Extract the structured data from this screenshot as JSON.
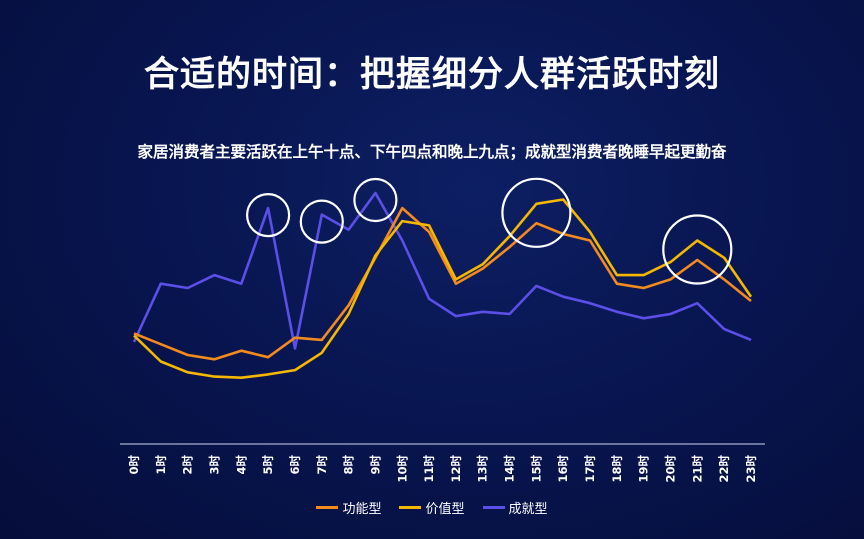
{
  "header": {
    "title": "合适的时间：把握细分人群活跃时刻",
    "subtitle": "家居消费者主要活跃在上午十点、下午四点和晚上九点；成就型消费者晚睡早起更勤奋"
  },
  "chart_data": {
    "type": "line",
    "title": "合适的时间：把握细分人群活跃时刻",
    "xlabel": "",
    "ylabel": "",
    "ylim": [
      0,
      100
    ],
    "grid": false,
    "legend_position": "bottom",
    "categories": [
      "0时",
      "1时",
      "2时",
      "3时",
      "4时",
      "5时",
      "6时",
      "7时",
      "8时",
      "9时",
      "10时",
      "11时",
      "12时",
      "13时",
      "14时",
      "15时",
      "16时",
      "17时",
      "18时",
      "19时",
      "20时",
      "21时",
      "22时",
      "23时"
    ],
    "series": [
      {
        "name": "功能型",
        "color": "#f28a1e",
        "values": [
          35,
          30,
          25,
          23,
          27,
          24,
          33,
          32,
          48,
          70,
          93,
          82,
          58,
          65,
          75,
          86,
          81,
          78,
          58,
          56,
          60,
          69,
          60,
          50
        ]
      },
      {
        "name": "价值型",
        "color": "#f5b800",
        "values": [
          34,
          22,
          17,
          15,
          14.5,
          16,
          18,
          26,
          44,
          71,
          87,
          85,
          60,
          67,
          80,
          95,
          97,
          82,
          62,
          62,
          68,
          78,
          70,
          52
        ]
      },
      {
        "name": "成就型",
        "color": "#5b4fe8",
        "values": [
          31,
          58,
          56,
          62,
          58,
          93,
          28,
          90,
          83,
          100,
          78,
          51,
          43,
          45,
          44,
          57,
          52,
          49,
          45,
          42,
          44,
          49,
          37,
          32
        ]
      }
    ],
    "highlights": [
      {
        "series": "成就型",
        "category": "5时"
      },
      {
        "series": "成就型",
        "category": "7时"
      },
      {
        "series": "成就型",
        "category": "9时"
      },
      {
        "series": "价值型",
        "category": "15时"
      },
      {
        "series": "价值型",
        "category": "21时"
      }
    ]
  }
}
